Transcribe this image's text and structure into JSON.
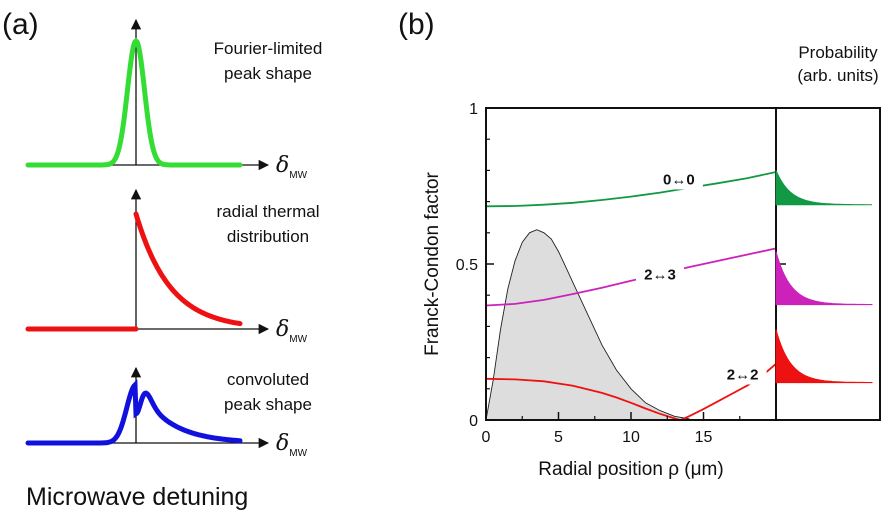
{
  "panel_a": {
    "label": "(a)",
    "bottom_label": "Microwave detuning",
    "axis_symbol": "δ",
    "axis_subscript": "MW",
    "subplots": [
      {
        "desc_lines": [
          "Fourier-limited",
          "peak shape"
        ],
        "shape": "gaussian",
        "color": "#33dd33"
      },
      {
        "desc_lines": [
          "radial thermal",
          "distribution"
        ],
        "shape": "exponential",
        "color": "#ee1111"
      },
      {
        "desc_lines": [
          "convoluted",
          "peak shape"
        ],
        "shape": "convolution",
        "color": "#1111dd"
      }
    ]
  },
  "chart_data": {
    "panel_label": "(b)",
    "type": "line",
    "xlabel": "Radial position ρ (μm)",
    "ylabel": "Franck-Condon factor",
    "xlim": [
      0,
      20
    ],
    "ylim": [
      0,
      1
    ],
    "xticks": [
      0,
      5,
      10,
      15
    ],
    "yticks": [
      {
        "value": 0,
        "label": "0"
      },
      {
        "value": 0.5,
        "label": "0.5"
      },
      {
        "value": 1,
        "label": "1"
      }
    ],
    "series": [
      {
        "name": "0↔0",
        "color": "#119944",
        "x": [
          0,
          2,
          4,
          6,
          8,
          10,
          12,
          14,
          16,
          18,
          20
        ],
        "y": [
          0.685,
          0.686,
          0.69,
          0.696,
          0.705,
          0.716,
          0.729,
          0.744,
          0.759,
          0.775,
          0.795
        ],
        "label_at": [
          13.3,
          0.755
        ]
      },
      {
        "name": "2↔3",
        "color": "#cc22bb",
        "x": [
          0,
          2,
          4,
          6,
          8,
          10,
          12,
          14,
          16,
          18,
          20
        ],
        "y": [
          0.367,
          0.372,
          0.385,
          0.404,
          0.424,
          0.446,
          0.468,
          0.49,
          0.51,
          0.53,
          0.55
        ],
        "label_at": [
          12.0,
          0.45
        ]
      },
      {
        "name": "2↔2",
        "color": "#ee1111",
        "x": [
          0,
          2,
          4,
          6,
          8,
          9,
          10,
          11,
          12,
          13,
          13.4,
          14,
          15,
          16,
          17,
          18,
          19,
          20
        ],
        "y": [
          0.132,
          0.13,
          0.124,
          0.11,
          0.087,
          0.072,
          0.055,
          0.037,
          0.02,
          0.005,
          0,
          0.012,
          0.035,
          0.06,
          0.085,
          0.11,
          0.14,
          0.18
        ],
        "label_at": [
          17.7,
          0.13
        ]
      }
    ],
    "shaded_distribution": {
      "x": [
        0,
        0.5,
        1,
        1.5,
        2,
        2.5,
        3,
        3.5,
        4,
        4.5,
        5,
        5.5,
        6,
        7,
        8,
        9,
        10,
        11,
        12,
        13,
        14
      ],
      "y": [
        0,
        0.13,
        0.29,
        0.42,
        0.51,
        0.57,
        0.6,
        0.61,
        0.6,
        0.58,
        0.54,
        0.49,
        0.44,
        0.34,
        0.24,
        0.16,
        0.1,
        0.055,
        0.03,
        0.012,
        0.004
      ],
      "fill": "#dddddd"
    },
    "side_panel": {
      "title_lines": [
        "Probability",
        "(arb. units)"
      ],
      "peaks": [
        {
          "transition": "0↔0",
          "center_y": 0.69,
          "amplitude": 0.11,
          "color": "#119944"
        },
        {
          "transition": "2↔3",
          "center_y": 0.37,
          "amplitude": 0.17,
          "color": "#cc22bb"
        },
        {
          "transition": "2↔2",
          "center_y": 0.12,
          "amplitude": 0.17,
          "color": "#ee1111"
        }
      ]
    }
  }
}
